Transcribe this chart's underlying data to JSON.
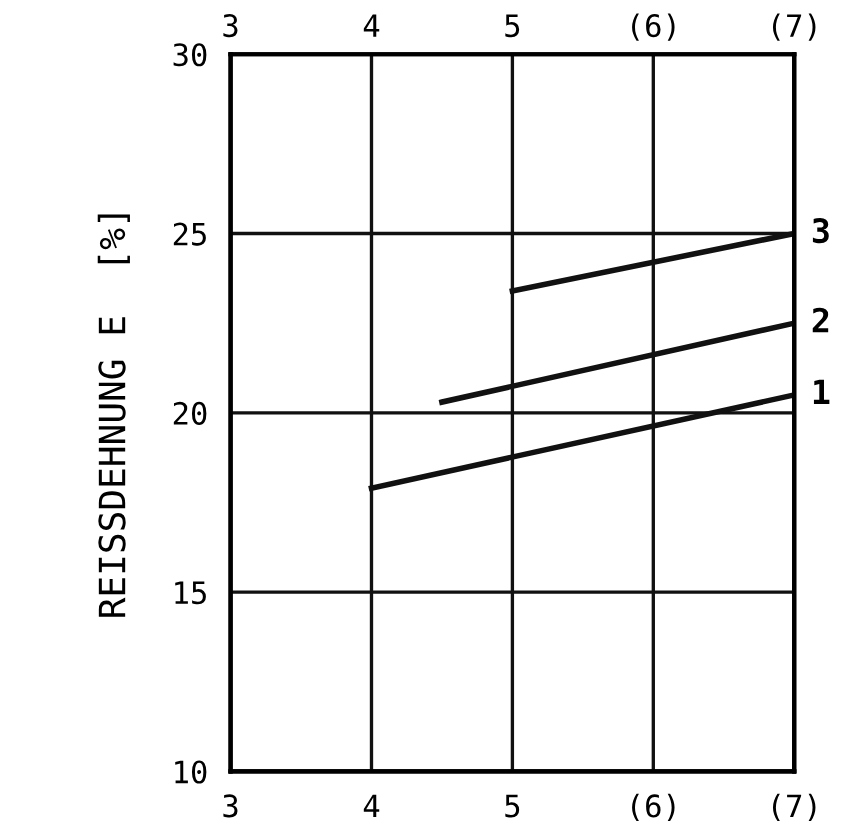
{
  "chart_data": {
    "type": "line",
    "ylabel": "REISSDEHNUNG E  [%]",
    "series": [
      {
        "name": "1",
        "color": "#111111",
        "x": [
          4.0,
          7.0
        ],
        "values": [
          17.9,
          20.5
        ]
      },
      {
        "name": "2",
        "color": "#111111",
        "x": [
          4.5,
          7.0
        ],
        "values": [
          20.3,
          22.5
        ]
      },
      {
        "name": "3",
        "color": "#111111",
        "x": [
          5.0,
          7.0
        ],
        "values": [
          23.4,
          25.0
        ]
      }
    ],
    "xlim": [
      3,
      7
    ],
    "xticks": [
      3,
      4,
      5,
      {
        "value": 6,
        "label": "(6)"
      },
      {
        "value": 7,
        "label": "(7)"
      }
    ],
    "x2lim": [
      3,
      7
    ],
    "x2ticks": [
      3,
      4,
      5,
      {
        "value": 6,
        "label": "(6)"
      },
      {
        "value": 7,
        "label": "(7)"
      }
    ],
    "ylim": [
      10,
      30
    ],
    "yticks": [
      10,
      15,
      20,
      25,
      30
    ],
    "grid": true,
    "legend": false,
    "marker": "none",
    "line_style": "solid"
  }
}
